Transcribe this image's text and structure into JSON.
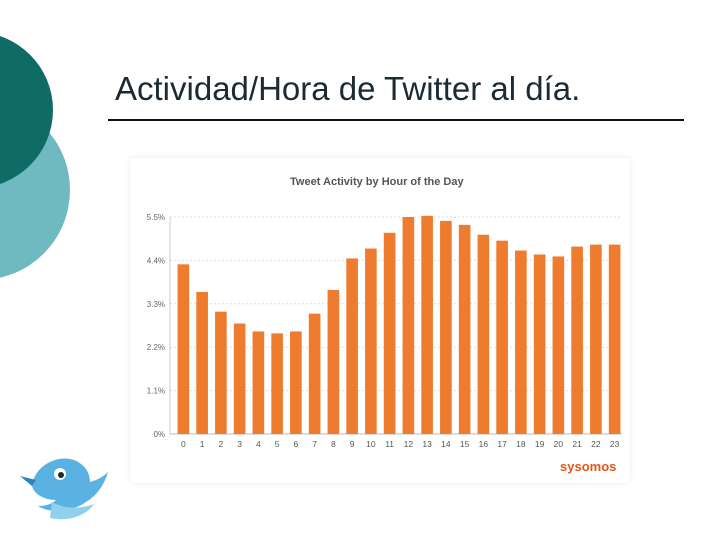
{
  "slide": {
    "title": "Actividad/Hora de Twitter al día."
  },
  "colors": {
    "bar": "#ef7b2e",
    "dark_teal": "#0f6b66",
    "light_teal": "#6fb9c1",
    "bird": "#5ab2e3"
  },
  "icons": {
    "bird": "twitter-bird-icon"
  },
  "chart_data": {
    "type": "bar",
    "title": "Tweet Activity by Hour of the Day",
    "categories": [
      "0",
      "1",
      "2",
      "3",
      "4",
      "5",
      "6",
      "7",
      "8",
      "9",
      "10",
      "11",
      "12",
      "13",
      "14",
      "15",
      "16",
      "17",
      "18",
      "19",
      "20",
      "21",
      "22",
      "23"
    ],
    "values": [
      4.3,
      3.6,
      3.1,
      2.8,
      2.6,
      2.55,
      2.6,
      3.05,
      3.65,
      4.45,
      4.7,
      5.1,
      5.5,
      5.53,
      5.4,
      5.3,
      5.05,
      4.9,
      4.65,
      4.55,
      4.5,
      4.75,
      4.8,
      4.8
    ],
    "yticks": [
      "0%",
      "1.1%",
      "2.2%",
      "3.3%",
      "4.4%",
      "5.5%"
    ],
    "ylim": [
      0,
      5.5
    ],
    "grid": true,
    "watermark": "sysomos"
  }
}
